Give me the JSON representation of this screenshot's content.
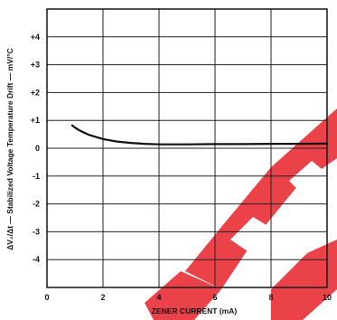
{
  "chart_data": {
    "type": "line",
    "xlabel": "ZENER CURRENT (mA)",
    "ylabel": "ΔV₂/Δt — Stabilized Voltage Temperature Drift — mV/°C",
    "xlim": [
      0,
      10
    ],
    "ylim": [
      -5,
      5
    ],
    "x_ticks": [
      "0",
      "2",
      "4",
      "6",
      "8",
      "10"
    ],
    "y_ticks": [
      "+4",
      "+3",
      "+2",
      "+1",
      "0",
      "-1",
      "-2",
      "-3",
      "-4"
    ],
    "grid": true,
    "series": [
      {
        "x": [
          0.9,
          1.0,
          1.2,
          1.5,
          2.0,
          2.5,
          3.0,
          3.5,
          4.0,
          5.0,
          6.0,
          7.0,
          8.0,
          9.0,
          10.0
        ],
        "y": [
          0.82,
          0.74,
          0.62,
          0.48,
          0.33,
          0.24,
          0.19,
          0.16,
          0.14,
          0.14,
          0.15,
          0.15,
          0.16,
          0.16,
          0.17
        ]
      }
    ],
    "colors": {
      "line": "#111111",
      "grid": "#222222",
      "watermark": "#e8202a"
    }
  }
}
